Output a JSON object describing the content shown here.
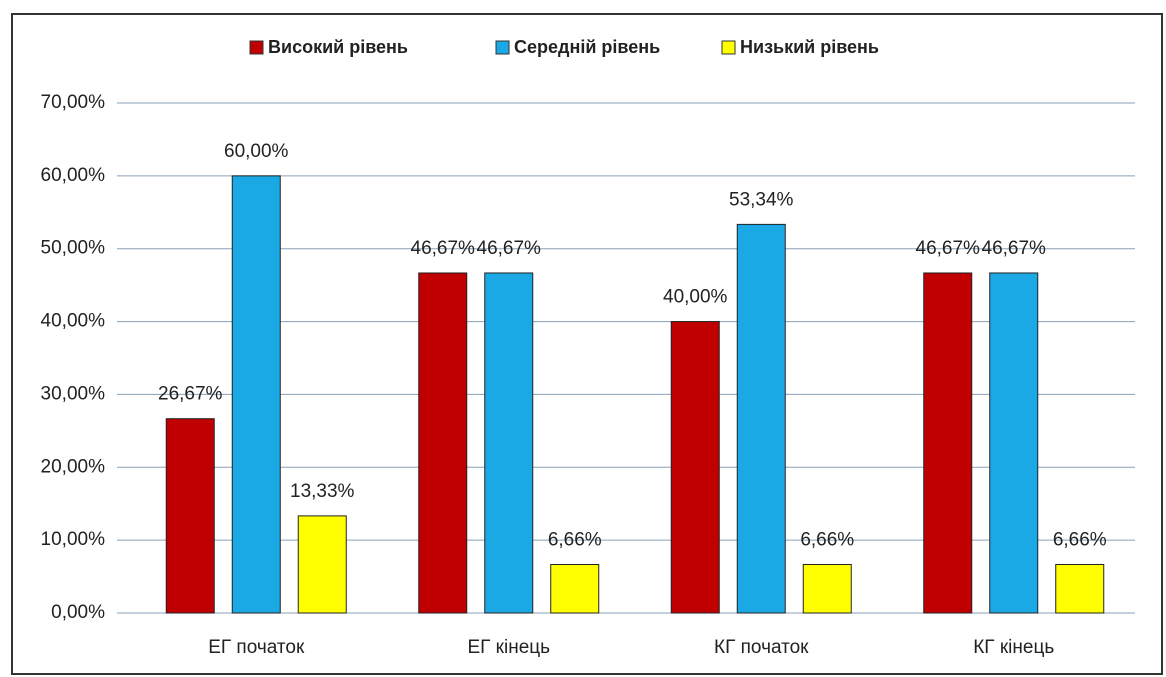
{
  "chart_data": {
    "type": "bar",
    "categories": [
      "ЕГ початок",
      "ЕГ кінець",
      "КГ початок",
      "КГ кінець"
    ],
    "series": [
      {
        "name": "Високий рівень",
        "color": "#c00000",
        "values": [
          26.67,
          46.67,
          40,
          46.67
        ],
        "value_labels": [
          "26,67%",
          "46,67%",
          "40,00%",
          "46,67%"
        ]
      },
      {
        "name": "Середній рівень",
        "color": "#1ba9e6",
        "values": [
          60,
          46.67,
          53.34,
          46.67
        ],
        "value_labels": [
          "60,00%",
          "46,67%",
          "53,34%",
          "46,67%"
        ]
      },
      {
        "name": "Низький рівень",
        "color": "#ffff00",
        "values": [
          13.33,
          6.66,
          6.66,
          6.66
        ],
        "value_labels": [
          "13,33%",
          "6,66%",
          "6,66%",
          "6,66%"
        ]
      }
    ],
    "ylim": [
      0,
      70
    ],
    "yticks": [
      {
        "value": 0,
        "label": "0,00%"
      },
      {
        "value": 10,
        "label": "10,00%"
      },
      {
        "value": 20,
        "label": "20,00%"
      },
      {
        "value": 30,
        "label": "30,00%"
      },
      {
        "value": 40,
        "label": "40,00%"
      },
      {
        "value": 50,
        "label": "50,00%"
      },
      {
        "value": 60,
        "label": "60,00%"
      },
      {
        "value": 70,
        "label": "70,00%"
      }
    ],
    "grid": true,
    "legend": "top"
  }
}
